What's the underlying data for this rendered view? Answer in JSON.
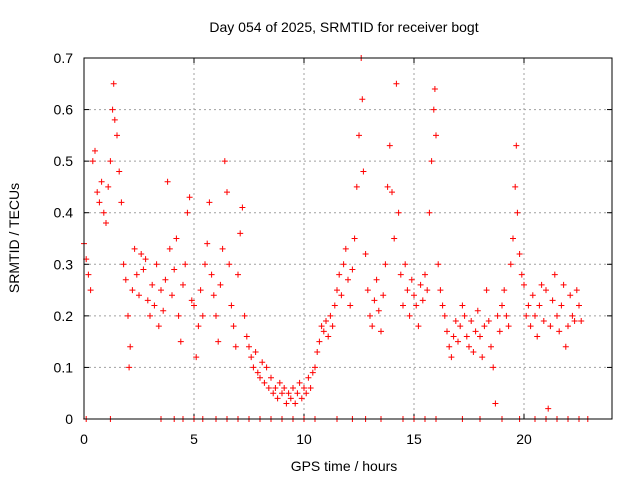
{
  "chart_data": {
    "type": "scatter",
    "title": "Day 054 of 2025, SRMTID for receiver bogt",
    "xlabel": "GPS time / hours",
    "ylabel": "SRMTID / TECUs",
    "xlim": [
      0,
      24
    ],
    "ylim": [
      0,
      0.7
    ],
    "xticks": [
      0,
      5,
      10,
      15,
      20
    ],
    "xtick_labels": [
      "0",
      "5",
      "10",
      "15",
      "20"
    ],
    "yticks": [
      0,
      0.1,
      0.2,
      0.3,
      0.4,
      0.5,
      0.6,
      0.7
    ],
    "ytick_labels": [
      "0",
      "0.1",
      "0.2",
      "0.3",
      "0.4",
      "0.5",
      "0.6",
      "0.7"
    ],
    "grid": true,
    "marker": "+",
    "color": "#ff0000",
    "series": [
      {
        "name": "SRMTID",
        "points": [
          [
            0.0,
            0.34
          ],
          [
            0.1,
            0.31
          ],
          [
            0.2,
            0.28
          ],
          [
            0.3,
            0.25
          ],
          [
            0.4,
            0.5
          ],
          [
            0.5,
            0.52
          ],
          [
            0.6,
            0.44
          ],
          [
            0.7,
            0.42
          ],
          [
            0.8,
            0.46
          ],
          [
            0.9,
            0.4
          ],
          [
            1.0,
            0.38
          ],
          [
            1.1,
            0.45
          ],
          [
            1.2,
            0.5
          ],
          [
            1.3,
            0.6
          ],
          [
            1.35,
            0.65
          ],
          [
            1.4,
            0.58
          ],
          [
            1.5,
            0.55
          ],
          [
            1.6,
            0.48
          ],
          [
            1.7,
            0.42
          ],
          [
            1.8,
            0.3
          ],
          [
            1.9,
            0.27
          ],
          [
            2.0,
            0.2
          ],
          [
            2.05,
            0.1
          ],
          [
            2.1,
            0.14
          ],
          [
            2.2,
            0.25
          ],
          [
            2.3,
            0.33
          ],
          [
            2.4,
            0.28
          ],
          [
            2.5,
            0.24
          ],
          [
            2.6,
            0.32
          ],
          [
            2.7,
            0.29
          ],
          [
            2.8,
            0.31
          ],
          [
            2.9,
            0.23
          ],
          [
            3.0,
            0.2
          ],
          [
            3.1,
            0.26
          ],
          [
            3.2,
            0.22
          ],
          [
            3.3,
            0.3
          ],
          [
            3.4,
            0.18
          ],
          [
            3.5,
            0.25
          ],
          [
            3.6,
            0.21
          ],
          [
            3.7,
            0.27
          ],
          [
            3.8,
            0.46
          ],
          [
            3.9,
            0.33
          ],
          [
            4.0,
            0.24
          ],
          [
            4.1,
            0.29
          ],
          [
            4.2,
            0.35
          ],
          [
            4.3,
            0.2
          ],
          [
            4.4,
            0.15
          ],
          [
            4.5,
            0.26
          ],
          [
            4.6,
            0.3
          ],
          [
            4.7,
            0.4
          ],
          [
            4.8,
            0.43
          ],
          [
            4.9,
            0.23
          ],
          [
            5.0,
            0.22
          ],
          [
            5.1,
            0.12
          ],
          [
            5.2,
            0.18
          ],
          [
            5.3,
            0.25
          ],
          [
            5.4,
            0.2
          ],
          [
            5.5,
            0.3
          ],
          [
            5.6,
            0.34
          ],
          [
            5.7,
            0.42
          ],
          [
            5.8,
            0.28
          ],
          [
            5.9,
            0.24
          ],
          [
            6.0,
            0.2
          ],
          [
            6.1,
            0.15
          ],
          [
            6.2,
            0.26
          ],
          [
            6.3,
            0.33
          ],
          [
            6.4,
            0.5
          ],
          [
            6.5,
            0.44
          ],
          [
            6.6,
            0.3
          ],
          [
            6.7,
            0.22
          ],
          [
            6.8,
            0.18
          ],
          [
            6.9,
            0.14
          ],
          [
            7.0,
            0.28
          ],
          [
            7.1,
            0.36
          ],
          [
            7.2,
            0.41
          ],
          [
            7.3,
            0.2
          ],
          [
            7.4,
            0.16
          ],
          [
            7.5,
            0.14
          ],
          [
            7.6,
            0.12
          ],
          [
            7.7,
            0.1
          ],
          [
            7.8,
            0.13
          ],
          [
            7.9,
            0.09
          ],
          [
            8.0,
            0.08
          ],
          [
            8.1,
            0.11
          ],
          [
            8.2,
            0.07
          ],
          [
            8.3,
            0.1
          ],
          [
            8.4,
            0.06
          ],
          [
            8.5,
            0.08
          ],
          [
            8.6,
            0.05
          ],
          [
            8.7,
            0.06
          ],
          [
            8.8,
            0.04
          ],
          [
            8.9,
            0.07
          ],
          [
            9.0,
            0.05
          ],
          [
            9.1,
            0.06
          ],
          [
            9.2,
            0.03
          ],
          [
            9.3,
            0.05
          ],
          [
            9.4,
            0.04
          ],
          [
            9.5,
            0.06
          ],
          [
            9.6,
            0.03
          ],
          [
            9.7,
            0.05
          ],
          [
            9.8,
            0.07
          ],
          [
            9.9,
            0.04
          ],
          [
            10.0,
            0.06
          ],
          [
            10.1,
            0.05
          ],
          [
            10.2,
            0.08
          ],
          [
            10.3,
            0.06
          ],
          [
            10.4,
            0.09
          ],
          [
            10.5,
            0.1
          ],
          [
            10.6,
            0.13
          ],
          [
            10.7,
            0.15
          ],
          [
            10.8,
            0.18
          ],
          [
            10.9,
            0.17
          ],
          [
            11.0,
            0.19
          ],
          [
            11.1,
            0.16
          ],
          [
            11.2,
            0.2
          ],
          [
            11.3,
            0.18
          ],
          [
            11.4,
            0.22
          ],
          [
            11.5,
            0.25
          ],
          [
            11.6,
            0.28
          ],
          [
            11.7,
            0.24
          ],
          [
            11.8,
            0.3
          ],
          [
            11.9,
            0.33
          ],
          [
            12.0,
            0.27
          ],
          [
            12.1,
            0.22
          ],
          [
            12.2,
            0.29
          ],
          [
            12.3,
            0.35
          ],
          [
            12.4,
            0.45
          ],
          [
            12.5,
            0.55
          ],
          [
            12.6,
            0.7
          ],
          [
            12.65,
            0.62
          ],
          [
            12.7,
            0.48
          ],
          [
            12.8,
            0.32
          ],
          [
            12.9,
            0.25
          ],
          [
            13.0,
            0.2
          ],
          [
            13.1,
            0.18
          ],
          [
            13.2,
            0.23
          ],
          [
            13.3,
            0.27
          ],
          [
            13.4,
            0.21
          ],
          [
            13.5,
            0.17
          ],
          [
            13.6,
            0.24
          ],
          [
            13.7,
            0.3
          ],
          [
            13.8,
            0.45
          ],
          [
            13.9,
            0.53
          ],
          [
            14.0,
            0.44
          ],
          [
            14.1,
            0.35
          ],
          [
            14.2,
            0.65
          ],
          [
            14.3,
            0.4
          ],
          [
            14.4,
            0.28
          ],
          [
            14.5,
            0.22
          ],
          [
            14.6,
            0.3
          ],
          [
            14.7,
            0.25
          ],
          [
            14.8,
            0.2
          ],
          [
            14.9,
            0.27
          ],
          [
            15.0,
            0.24
          ],
          [
            15.1,
            0.22
          ],
          [
            15.2,
            0.18
          ],
          [
            15.3,
            0.26
          ],
          [
            15.4,
            0.23
          ],
          [
            15.5,
            0.28
          ],
          [
            15.6,
            0.25
          ],
          [
            15.7,
            0.4
          ],
          [
            15.8,
            0.5
          ],
          [
            15.9,
            0.6
          ],
          [
            15.95,
            0.64
          ],
          [
            16.0,
            0.55
          ],
          [
            16.1,
            0.3
          ],
          [
            16.2,
            0.25
          ],
          [
            16.3,
            0.22
          ],
          [
            16.4,
            0.2
          ],
          [
            16.5,
            0.17
          ],
          [
            16.6,
            0.14
          ],
          [
            16.7,
            0.12
          ],
          [
            16.8,
            0.16
          ],
          [
            16.9,
            0.19
          ],
          [
            17.0,
            0.15
          ],
          [
            17.1,
            0.18
          ],
          [
            17.2,
            0.22
          ],
          [
            17.3,
            0.2
          ],
          [
            17.4,
            0.16
          ],
          [
            17.5,
            0.14
          ],
          [
            17.6,
            0.19
          ],
          [
            17.7,
            0.13
          ],
          [
            17.8,
            0.17
          ],
          [
            17.9,
            0.21
          ],
          [
            18.0,
            0.16
          ],
          [
            18.1,
            0.12
          ],
          [
            18.2,
            0.18
          ],
          [
            18.3,
            0.25
          ],
          [
            18.4,
            0.19
          ],
          [
            18.5,
            0.14
          ],
          [
            18.6,
            0.1
          ],
          [
            18.7,
            0.03
          ],
          [
            18.8,
            0.2
          ],
          [
            18.9,
            0.17
          ],
          [
            19.0,
            0.22
          ],
          [
            19.1,
            0.25
          ],
          [
            19.2,
            0.2
          ],
          [
            19.3,
            0.18
          ],
          [
            19.4,
            0.3
          ],
          [
            19.5,
            0.35
          ],
          [
            19.6,
            0.45
          ],
          [
            19.65,
            0.53
          ],
          [
            19.7,
            0.4
          ],
          [
            19.8,
            0.32
          ],
          [
            19.9,
            0.28
          ],
          [
            20.0,
            0.26
          ],
          [
            20.1,
            0.2
          ],
          [
            20.2,
            0.22
          ],
          [
            20.3,
            0.18
          ],
          [
            20.4,
            0.24
          ],
          [
            20.5,
            0.2
          ],
          [
            20.6,
            0.16
          ],
          [
            20.7,
            0.22
          ],
          [
            20.8,
            0.26
          ],
          [
            20.9,
            0.19
          ],
          [
            21.0,
            0.25
          ],
          [
            21.1,
            0.02
          ],
          [
            21.2,
            0.18
          ],
          [
            21.3,
            0.23
          ],
          [
            21.4,
            0.28
          ],
          [
            21.5,
            0.2
          ],
          [
            21.6,
            0.17
          ],
          [
            21.7,
            0.22
          ],
          [
            21.8,
            0.26
          ],
          [
            21.9,
            0.14
          ],
          [
            22.0,
            0.18
          ],
          [
            22.1,
            0.24
          ],
          [
            22.2,
            0.2
          ],
          [
            22.3,
            0.19
          ],
          [
            22.4,
            0.25
          ],
          [
            22.5,
            0.22
          ],
          [
            22.6,
            0.19
          ],
          [
            0.1,
            0.0
          ],
          [
            1.2,
            0.0
          ],
          [
            3.5,
            0.0
          ],
          [
            4.1,
            0.0
          ],
          [
            4.5,
            0.0
          ],
          [
            5.0,
            0.0
          ],
          [
            5.4,
            0.0
          ],
          [
            6.0,
            0.0
          ],
          [
            6.5,
            0.0
          ],
          [
            7.0,
            0.0
          ],
          [
            7.5,
            0.0
          ],
          [
            8.0,
            0.0
          ],
          [
            8.5,
            0.0
          ],
          [
            9.0,
            0.0
          ],
          [
            9.5,
            0.0
          ],
          [
            10.0,
            0.0
          ],
          [
            10.5,
            0.0
          ],
          [
            11.5,
            0.0
          ],
          [
            12.2,
            0.0
          ],
          [
            12.8,
            0.0
          ],
          [
            13.5,
            0.0
          ],
          [
            14.5,
            0.0
          ],
          [
            15.0,
            0.0
          ],
          [
            15.5,
            0.0
          ],
          [
            16.0,
            0.0
          ],
          [
            17.2,
            0.0
          ],
          [
            18.0,
            0.0
          ],
          [
            19.0,
            0.0
          ],
          [
            19.8,
            0.0
          ],
          [
            20.5,
            0.0
          ],
          [
            21.0,
            0.0
          ],
          [
            21.5,
            0.0
          ],
          [
            22.0,
            0.0
          ],
          [
            22.5,
            0.0
          ],
          [
            22.9,
            0.0
          ]
        ]
      }
    ]
  }
}
